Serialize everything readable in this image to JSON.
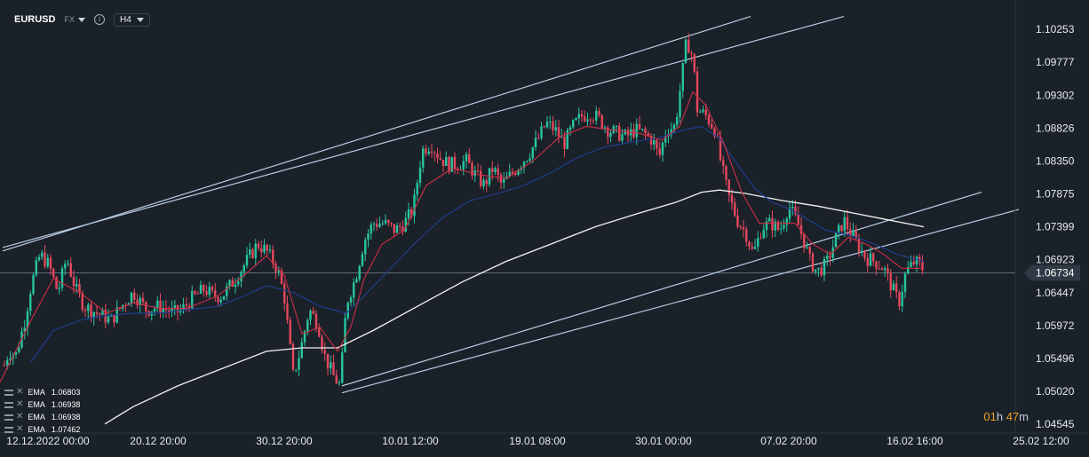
{
  "toolbar": {
    "symbol": "EURUSD",
    "market": "FX",
    "timeframe": "H4",
    "info_icon": "info-icon",
    "dropdown_icon": "chevron-down-icon"
  },
  "colors": {
    "background": "#1b2129",
    "up": "#26c6a0",
    "down": "#e5485d",
    "ema_red": "#cc2f45",
    "ema_blue": "#1f3d8f",
    "ema_white": "#f2f2f2",
    "channel": "#b8cde3",
    "price_line": "#5f6b7a",
    "countdown": "#f0a020"
  },
  "legend": [
    {
      "label": "EMA",
      "value": "1.06803"
    },
    {
      "label": "EMA",
      "value": "1.06938"
    },
    {
      "label": "EMA",
      "value": "1.06938"
    },
    {
      "label": "EMA",
      "value": "1.07462"
    }
  ],
  "countdown": {
    "hours": "01",
    "h_unit": "h",
    "minutes": "47",
    "m_unit": "m"
  },
  "chart_data": {
    "type": "candlestick",
    "symbol": "EURUSD",
    "timeframe": "H4",
    "y_ticks": [
      "1.10253",
      "1.09777",
      "1.09302",
      "1.08826",
      "1.08350",
      "1.07875",
      "1.07399",
      "1.06923",
      "1.06447",
      "1.05972",
      "1.05496",
      "1.05020",
      "1.04545"
    ],
    "ylim": [
      1.0447,
      1.1037
    ],
    "current_price": "1.06734",
    "x_ticks": [
      "12.12.2022  00:00",
      "20.12  20:00",
      "30.12  20:00",
      "10.01  12:00",
      "19.01  08:00",
      "30.01  00:00",
      "07.02  20:00",
      "16.02  16:00",
      "25.02  12:00"
    ],
    "price_path": [
      [
        0,
        1.0515
      ],
      [
        5,
        1.054
      ],
      [
        10,
        1.056
      ],
      [
        18,
        1.0555
      ],
      [
        28,
        1.0605
      ],
      [
        35,
        1.0655
      ],
      [
        45,
        1.07
      ],
      [
        55,
        1.0685
      ],
      [
        65,
        1.0645
      ],
      [
        75,
        1.0695
      ],
      [
        85,
        1.065
      ],
      [
        95,
        1.0625
      ],
      [
        110,
        1.0615
      ],
      [
        125,
        1.0605
      ],
      [
        140,
        1.063
      ],
      [
        150,
        1.0645
      ],
      [
        165,
        1.062
      ],
      [
        180,
        1.0625
      ],
      [
        195,
        1.0615
      ],
      [
        205,
        1.062
      ],
      [
        215,
        1.0635
      ],
      [
        230,
        1.065
      ],
      [
        240,
        1.064
      ],
      [
        250,
        1.064
      ],
      [
        265,
        1.0665
      ],
      [
        280,
        1.0695
      ],
      [
        290,
        1.0715
      ],
      [
        300,
        1.0705
      ],
      [
        312,
        1.068
      ],
      [
        320,
        1.064
      ],
      [
        330,
        1.0525
      ],
      [
        338,
        1.056
      ],
      [
        348,
        1.062
      ],
      [
        358,
        1.06
      ],
      [
        365,
        1.0555
      ],
      [
        375,
        1.0525
      ],
      [
        383,
        1.051
      ],
      [
        390,
        1.063
      ],
      [
        400,
        1.0665
      ],
      [
        410,
        1.072
      ],
      [
        420,
        1.0745
      ],
      [
        432,
        1.0745
      ],
      [
        445,
        1.0735
      ],
      [
        455,
        1.0745
      ],
      [
        465,
        1.0765
      ],
      [
        475,
        1.085
      ],
      [
        485,
        1.086
      ],
      [
        495,
        1.084
      ],
      [
        505,
        1.083
      ],
      [
        515,
        1.083
      ],
      [
        525,
        1.0835
      ],
      [
        535,
        1.0815
      ],
      [
        545,
        1.08
      ],
      [
        555,
        1.0825
      ],
      [
        565,
        1.08
      ],
      [
        575,
        1.0815
      ],
      [
        585,
        1.083
      ],
      [
        595,
        1.0845
      ],
      [
        605,
        1.0865
      ],
      [
        615,
        1.089
      ],
      [
        625,
        1.088
      ],
      [
        635,
        1.086
      ],
      [
        645,
        1.0885
      ],
      [
        655,
        1.09
      ],
      [
        665,
        1.0905
      ],
      [
        675,
        1.0895
      ],
      [
        685,
        1.088
      ],
      [
        695,
        1.0875
      ],
      [
        705,
        1.087
      ],
      [
        715,
        1.088
      ],
      [
        725,
        1.0875
      ],
      [
        735,
        1.0865
      ],
      [
        742,
        1.084
      ],
      [
        750,
        1.088
      ],
      [
        760,
        1.0885
      ],
      [
        768,
        1.096
      ],
      [
        773,
        1.101
      ],
      [
        780,
        1.0985
      ],
      [
        785,
        1.091
      ],
      [
        795,
        1.09
      ],
      [
        805,
        1.088
      ],
      [
        812,
        1.083
      ],
      [
        820,
        1.0785
      ],
      [
        830,
        1.075
      ],
      [
        840,
        1.073
      ],
      [
        848,
        1.07
      ],
      [
        858,
        1.074
      ],
      [
        868,
        1.0745
      ],
      [
        878,
        1.0735
      ],
      [
        888,
        1.077
      ],
      [
        898,
        1.0745
      ],
      [
        905,
        1.072
      ],
      [
        912,
        1.069
      ],
      [
        920,
        1.0675
      ],
      [
        930,
        1.0685
      ],
      [
        940,
        1.072
      ],
      [
        950,
        1.075
      ],
      [
        958,
        1.073
      ],
      [
        965,
        1.0715
      ],
      [
        975,
        1.0695
      ],
      [
        985,
        1.069
      ],
      [
        995,
        1.068
      ],
      [
        1005,
        1.065
      ],
      [
        1012,
        1.063
      ],
      [
        1020,
        1.0675
      ],
      [
        1030,
        1.069
      ],
      [
        1040,
        1.0678
      ]
    ],
    "ema_red_path": [
      [
        0,
        1.0515
      ],
      [
        35,
        1.0605
      ],
      [
        60,
        1.0665
      ],
      [
        90,
        1.0645
      ],
      [
        120,
        1.0615
      ],
      [
        150,
        1.063
      ],
      [
        180,
        1.0622
      ],
      [
        210,
        1.0622
      ],
      [
        245,
        1.064
      ],
      [
        275,
        1.067
      ],
      [
        300,
        1.0698
      ],
      [
        320,
        1.067
      ],
      [
        340,
        1.0585
      ],
      [
        360,
        1.0595
      ],
      [
        380,
        1.056
      ],
      [
        395,
        1.0595
      ],
      [
        410,
        1.0665
      ],
      [
        430,
        1.0715
      ],
      [
        455,
        1.0735
      ],
      [
        480,
        1.08
      ],
      [
        510,
        1.0825
      ],
      [
        540,
        1.0815
      ],
      [
        570,
        1.081
      ],
      [
        600,
        1.0835
      ],
      [
        630,
        1.087
      ],
      [
        660,
        1.0885
      ],
      [
        690,
        1.088
      ],
      [
        720,
        1.0875
      ],
      [
        745,
        1.0865
      ],
      [
        765,
        1.0885
      ],
      [
        780,
        1.0935
      ],
      [
        795,
        1.0915
      ],
      [
        815,
        1.086
      ],
      [
        835,
        1.079
      ],
      [
        855,
        1.0745
      ],
      [
        875,
        1.0745
      ],
      [
        895,
        1.0745
      ],
      [
        915,
        1.0715
      ],
      [
        935,
        1.07
      ],
      [
        955,
        1.0725
      ],
      [
        975,
        1.0715
      ],
      [
        995,
        1.07
      ],
      [
        1015,
        1.068
      ],
      [
        1040,
        1.068
      ]
    ],
    "ema_blue_path": [
      [
        35,
        1.0545
      ],
      [
        60,
        1.059
      ],
      [
        90,
        1.0605
      ],
      [
        120,
        1.0612
      ],
      [
        150,
        1.0615
      ],
      [
        180,
        1.0615
      ],
      [
        210,
        1.062
      ],
      [
        245,
        1.0625
      ],
      [
        275,
        1.064
      ],
      [
        300,
        1.0655
      ],
      [
        330,
        1.0645
      ],
      [
        360,
        1.0625
      ],
      [
        390,
        1.0615
      ],
      [
        410,
        1.064
      ],
      [
        440,
        1.068
      ],
      [
        470,
        1.072
      ],
      [
        500,
        1.0755
      ],
      [
        530,
        1.0778
      ],
      [
        560,
        1.0788
      ],
      [
        590,
        1.08
      ],
      [
        620,
        1.0818
      ],
      [
        650,
        1.084
      ],
      [
        680,
        1.0855
      ],
      [
        710,
        1.0862
      ],
      [
        740,
        1.0868
      ],
      [
        770,
        1.088
      ],
      [
        790,
        1.0885
      ],
      [
        810,
        1.0868
      ],
      [
        830,
        1.083
      ],
      [
        850,
        1.0795
      ],
      [
        870,
        1.0775
      ],
      [
        890,
        1.0765
      ],
      [
        910,
        1.075
      ],
      [
        930,
        1.0735
      ],
      [
        950,
        1.073
      ],
      [
        970,
        1.0722
      ],
      [
        990,
        1.0712
      ],
      [
        1010,
        1.07
      ],
      [
        1040,
        1.069
      ]
    ],
    "ema_white_path": [
      [
        118,
        1.0455
      ],
      [
        150,
        1.048
      ],
      [
        200,
        1.051
      ],
      [
        250,
        1.0535
      ],
      [
        300,
        1.056
      ],
      [
        340,
        1.0565
      ],
      [
        380,
        1.0565
      ],
      [
        420,
        1.059
      ],
      [
        470,
        1.0625
      ],
      [
        520,
        1.066
      ],
      [
        570,
        1.069
      ],
      [
        620,
        1.0715
      ],
      [
        670,
        1.074
      ],
      [
        720,
        1.076
      ],
      [
        760,
        1.0775
      ],
      [
        790,
        1.079
      ],
      [
        810,
        1.0793
      ],
      [
        840,
        1.0788
      ],
      [
        880,
        1.0778
      ],
      [
        920,
        1.077
      ],
      [
        960,
        1.076
      ],
      [
        1000,
        1.075
      ],
      [
        1040,
        1.074
      ]
    ],
    "trendlines": [
      [
        [
          3,
          1.0705
        ],
        [
          845,
          1.1044
        ]
      ],
      [
        [
          3,
          1.071
        ],
        [
          950,
          1.1044
        ]
      ],
      [
        [
          385,
          1.051
        ],
        [
          1105,
          1.079
        ]
      ],
      [
        [
          385,
          1.05
        ],
        [
          1147,
          1.0765
        ]
      ]
    ]
  }
}
